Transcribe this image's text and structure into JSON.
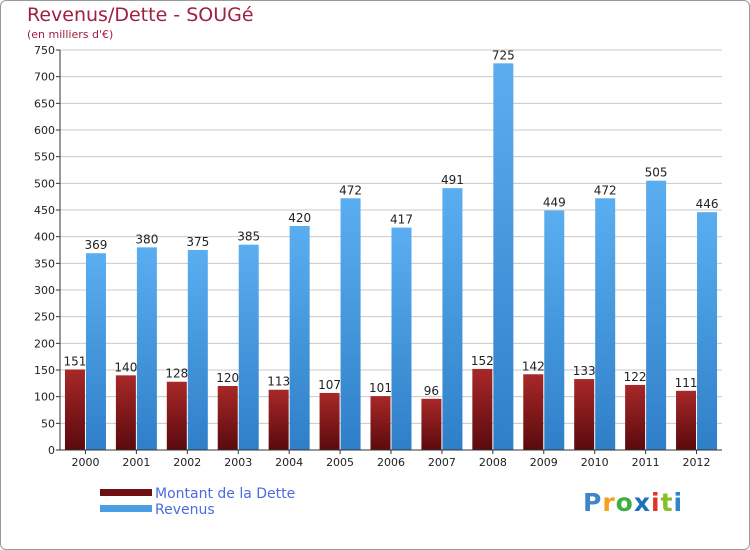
{
  "header": {
    "title": "Revenus/Dette - SOUGé",
    "subtitle": "(en milliers d'€)"
  },
  "legend": {
    "items": [
      {
        "label": "Montant de la Dette",
        "color": "#6e0f12"
      },
      {
        "label": "Revenus",
        "color": "#4a9ee3"
      }
    ]
  },
  "logo": {
    "text": "Proxiti"
  },
  "colors": {
    "grid": "#c8c8c8",
    "axis": "#333333",
    "label": "#222222",
    "debt_top": "#a82828",
    "debt_bottom": "#5a0a0e",
    "rev_top": "#5aaef0",
    "rev_bottom": "#2f7fc8"
  },
  "chart_data": {
    "type": "bar",
    "title": "Revenus/Dette - SOUGé",
    "ylabel": "(en milliers d'€)",
    "xlabel": "",
    "ylim": [
      0,
      750
    ],
    "yticks": [
      0,
      50,
      100,
      150,
      200,
      250,
      300,
      350,
      400,
      450,
      500,
      550,
      600,
      650,
      700,
      750
    ],
    "grid": true,
    "legend_position": "bottom-left",
    "categories": [
      "2000",
      "2001",
      "2002",
      "2003",
      "2004",
      "2005",
      "2006",
      "2007",
      "2008",
      "2009",
      "2010",
      "2011",
      "2012"
    ],
    "series": [
      {
        "name": "Montant de la Dette",
        "values": [
          151,
          140,
          128,
          120,
          113,
          107,
          101,
          96,
          152,
          142,
          133,
          122,
          111
        ]
      },
      {
        "name": "Revenus",
        "values": [
          369,
          380,
          375,
          385,
          420,
          472,
          417,
          491,
          725,
          449,
          472,
          505,
          446
        ]
      }
    ]
  }
}
